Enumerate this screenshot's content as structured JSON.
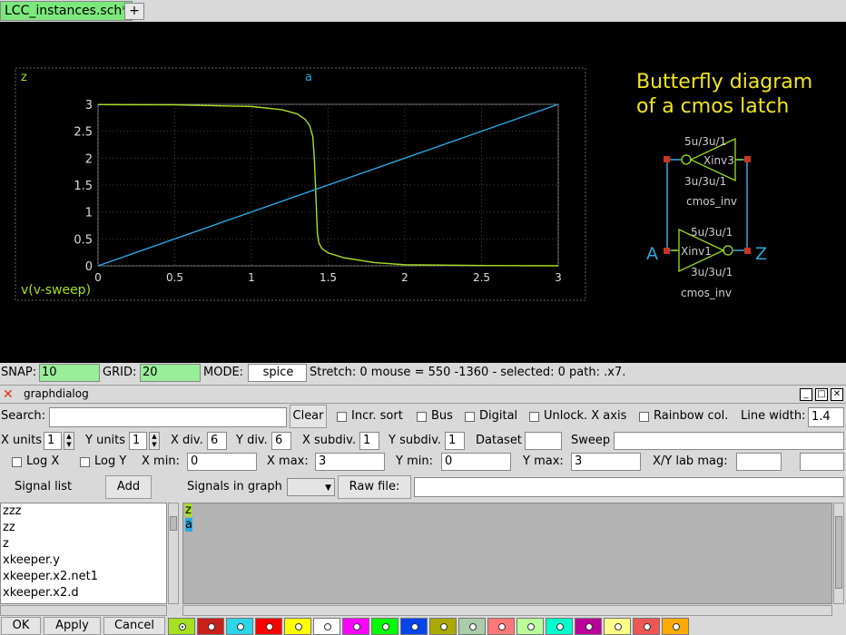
{
  "tabs": {
    "active": "LCC_instances.sch*",
    "add": "+"
  },
  "schematic": {
    "title_line1": "Butterfly diagram",
    "title_line2": "of a cmos latch",
    "inv_top": {
      "size_top": "5u/3u/1",
      "name": "Xinv3",
      "size_bottom": "3u/3u/1",
      "symbol": "cmos_inv"
    },
    "inv_bottom": {
      "size_top": "5u/3u/1",
      "name": "Xinv1",
      "size_bottom": "3u/3u/1",
      "symbol": "cmos_inv"
    },
    "pin_a": "A",
    "pin_z": "Z",
    "colors": {
      "title": "#f2e61b",
      "wire": "#33aadd",
      "device": "#9fe020",
      "pin_label": "#2aa7e0",
      "pin": "#cc3322"
    }
  },
  "chart_data": {
    "type": "line",
    "xlabel": "v(v-sweep)",
    "xlim": [
      0,
      3
    ],
    "ylim": [
      0,
      3
    ],
    "xticks": [
      "0",
      "0.5",
      "1",
      "1.5",
      "2",
      "2.5",
      "3"
    ],
    "yticks": [
      "0",
      "0.5",
      "1",
      "1.5",
      "2",
      "2.5",
      "3"
    ],
    "series": [
      {
        "name": "z",
        "color": "#a6e021",
        "x": [
          0,
          0.5,
          1.0,
          1.2,
          1.3,
          1.35,
          1.38,
          1.4,
          1.41,
          1.42,
          1.43,
          1.44,
          1.46,
          1.5,
          1.6,
          1.8,
          2.0,
          2.5,
          3.0
        ],
        "y": [
          2.995,
          2.99,
          2.96,
          2.9,
          2.82,
          2.72,
          2.6,
          2.4,
          2.0,
          1.3,
          0.6,
          0.42,
          0.32,
          0.24,
          0.15,
          0.06,
          0.02,
          0.005,
          0
        ]
      },
      {
        "name": "a",
        "color": "#2aa7e0",
        "x": [
          0,
          3
        ],
        "y": [
          0,
          3
        ]
      }
    ]
  },
  "status": {
    "snap_label": "SNAP:",
    "snap_value": "10",
    "grid_label": "GRID:",
    "grid_value": "20",
    "mode_label": "MODE:",
    "mode_value": "spice",
    "info": "Stretch: 0  mouse = 550 -1360 - selected: 0 path: .x7."
  },
  "dialog": {
    "title": "graphdialog",
    "search_label": "Search:",
    "search_value": "",
    "clear": "Clear",
    "incr_sort": "Incr. sort",
    "bus": "Bus",
    "digital": "Digital",
    "unlock_x": "Unlock. X axis",
    "rainbow": "Rainbow col.",
    "line_width_label": "Line width:",
    "line_width": "1.4",
    "x_units_label": "X units",
    "x_units": "1",
    "y_units_label": "Y units",
    "y_units": "1",
    "x_div_label": "X div.",
    "x_div": "6",
    "y_div_label": "Y div.",
    "y_div": "6",
    "x_subdiv_label": "X subdiv.",
    "x_subdiv": "1",
    "y_subdiv_label": "Y subdiv.",
    "y_subdiv": "1",
    "dataset_label": "Dataset",
    "dataset": "",
    "sweep_label": "Sweep",
    "sweep": "",
    "log_x": "Log X",
    "log_y": "Log Y",
    "x_min_label": "X min:",
    "x_min": "0",
    "x_max_label": "X max:",
    "x_max": "3",
    "y_min_label": "Y min:",
    "y_min": "0",
    "y_max_label": "Y max:",
    "y_max": "3",
    "xy_lab_mag_label": "X/Y lab mag:",
    "signal_list_label": "Signal list",
    "add": "Add",
    "signals_in_graph_label": "Signals in graph",
    "raw_file_button": "Raw file:",
    "raw_file": "",
    "signal_list": [
      "zzz",
      "zz",
      "z",
      "xkeeper.y",
      "xkeeper.x2.net1",
      "xkeeper.x2.d"
    ],
    "graph_signals": [
      {
        "name": "z",
        "color": "#a6e021"
      },
      {
        "name": "a",
        "color": "#2aa7e0"
      }
    ],
    "ok": "OK",
    "apply": "Apply",
    "cancel": "Cancel",
    "palette": [
      "#a6e021",
      "#c8201a",
      "#2ad6e8",
      "#ff0000",
      "#ffff00",
      "#ffffff",
      "#ff00ff",
      "#00ff00",
      "#0044ee",
      "#aaaa00",
      "#aaccaa",
      "#ff7777",
      "#bbff99",
      "#00ffcc",
      "#bb0099",
      "#ffff88",
      "#ee5555",
      "#ffaa00"
    ]
  }
}
